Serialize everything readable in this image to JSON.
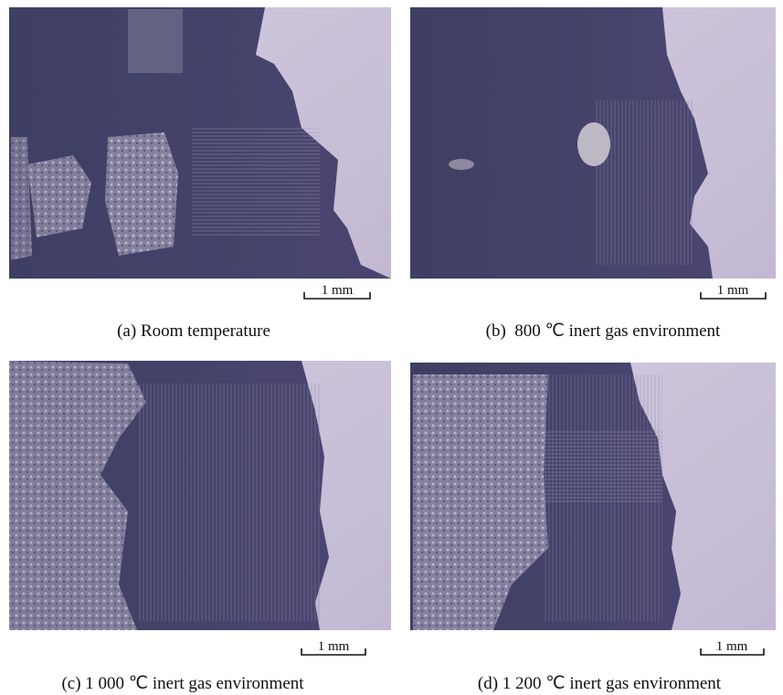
{
  "panels": [
    {
      "scale_bar": "1 mm",
      "caption": "(a) Room temperature"
    },
    {
      "scale_bar": "1 mm",
      "caption": "(b)  800 ℃ inert gas environment"
    },
    {
      "scale_bar": "1 mm",
      "caption": "(c) 1 000 ℃ inert gas environment"
    },
    {
      "scale_bar": "1 mm",
      "caption": "(d) 1 200 ℃ inert gas environment"
    }
  ]
}
